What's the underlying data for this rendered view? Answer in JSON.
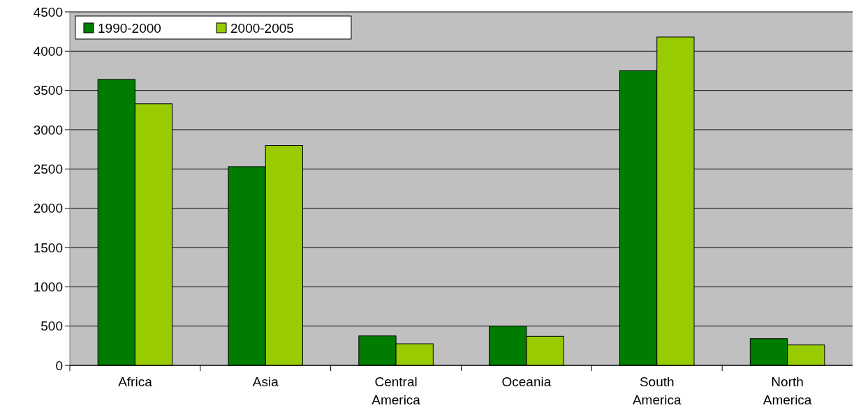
{
  "chart_data": {
    "type": "bar",
    "categories": [
      "Africa",
      "Asia",
      "Central America",
      "Oceania",
      "South America",
      "North America"
    ],
    "series": [
      {
        "name": "1990-2000",
        "color": "#007c00",
        "values": [
          3640,
          2530,
          375,
          500,
          3750,
          340
        ]
      },
      {
        "name": "2000-2005",
        "color": "#99cc00",
        "values": [
          3330,
          2800,
          275,
          370,
          4180,
          260
        ]
      }
    ],
    "ylim": [
      0,
      4500
    ],
    "yticks": [
      0,
      500,
      1000,
      1500,
      2000,
      2500,
      3000,
      3500,
      4000,
      4500
    ],
    "grid": "y",
    "legend": "top left"
  }
}
